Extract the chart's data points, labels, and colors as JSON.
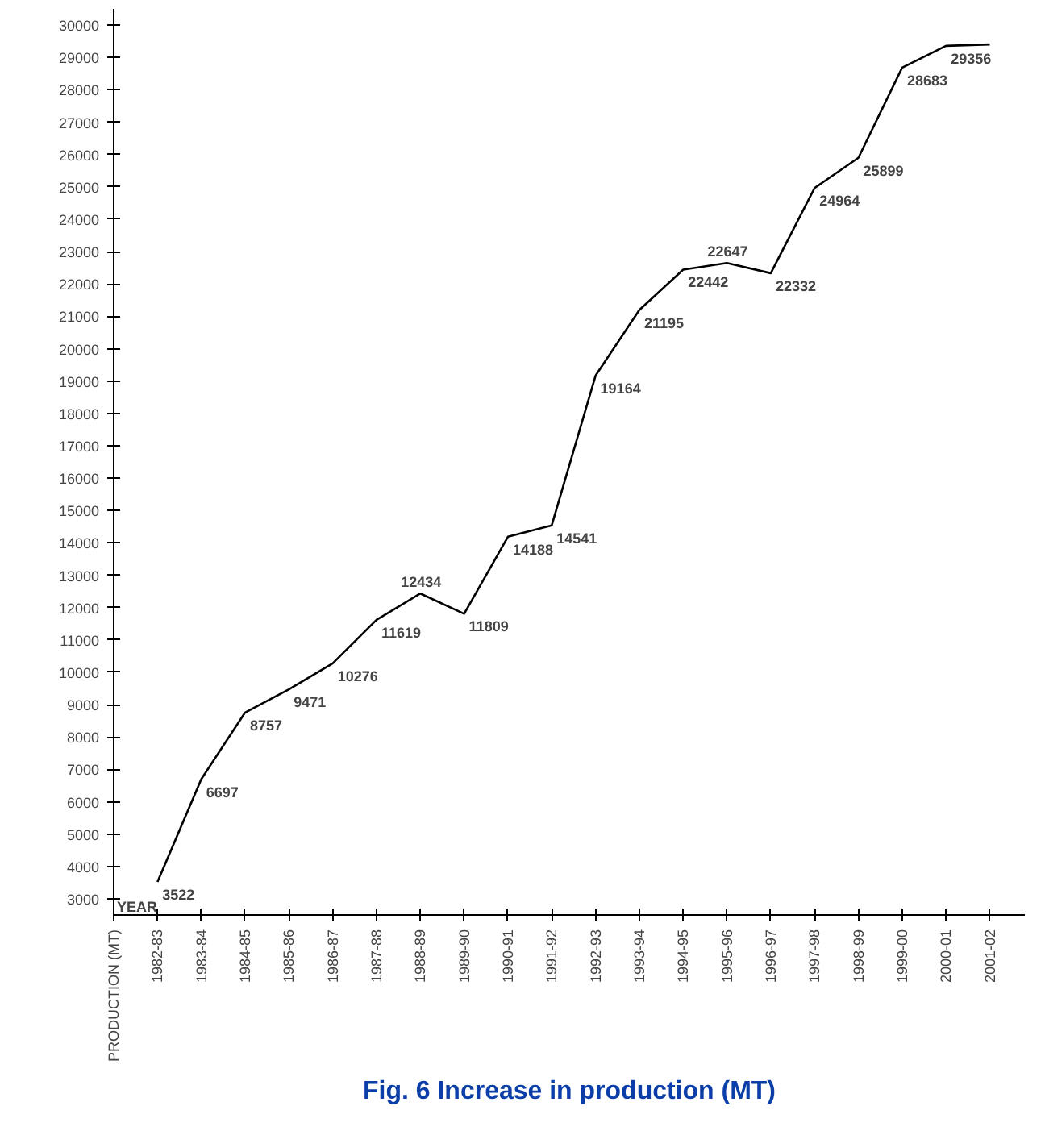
{
  "chart_data": {
    "type": "line",
    "title": "Fig. 6 Increase in production (MT)",
    "categories": [
      "1982-83",
      "1983-84",
      "1984-85",
      "1985-86",
      "1986-87",
      "1987-88",
      "1988-89",
      "1989-90",
      "1990-91",
      "1991-92",
      "1992-93",
      "1993-94",
      "1994-95",
      "1995-96",
      "1996-97",
      "1997-98",
      "1998-99",
      "1999-00",
      "2000-01",
      "2001-02"
    ],
    "series": [
      {
        "color": "#000000",
        "values": [
          3522,
          6697,
          8757,
          9471,
          10276,
          11619,
          12434,
          11809,
          14188,
          14541,
          19164,
          21195,
          22442,
          22647,
          22332,
          24964,
          25899,
          28683,
          29356,
          29400
        ],
        "value_labels": [
          "3522",
          "6697",
          "8757",
          "9471",
          "10276",
          "11619",
          "12434",
          "11809",
          "14188",
          "14541",
          "19164",
          "21195",
          "22442",
          "22647",
          "22332",
          "24964",
          "25899",
          "28683",
          "29356",
          null
        ]
      }
    ],
    "ylim": [
      2500,
      30500
    ],
    "yticks": [
      3000,
      4000,
      5000,
      6000,
      7000,
      8000,
      9000,
      10000,
      11000,
      12000,
      13000,
      14000,
      15000,
      16000,
      17000,
      18000,
      19000,
      20000,
      21000,
      22000,
      23000,
      24000,
      25000,
      26000,
      27000,
      28000,
      29000,
      30000
    ],
    "annotations": [
      "YEAR",
      "PRODUCTION (MT)"
    ],
    "grid": false,
    "marker": "none",
    "line_style": "solid"
  }
}
